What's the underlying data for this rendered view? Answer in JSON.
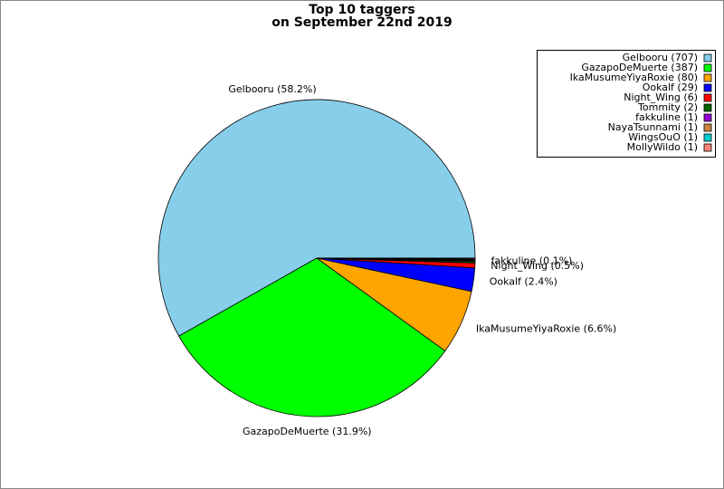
{
  "chart_data": {
    "type": "pie",
    "title": [
      "Top 10 taggers",
      "on September 22nd 2019"
    ],
    "categories": [
      "Gelbooru",
      "GazapoDeMuerte",
      "IkaMusumeYiyaRoxie",
      "Ookalf",
      "Night_Wing",
      "Tommity",
      "fakkuline",
      "NayaTsunnami",
      "WingsOuO",
      "MollyWildo"
    ],
    "values": [
      707,
      387,
      80,
      29,
      6,
      2,
      1,
      1,
      1,
      1
    ],
    "value_labels": [
      "Gelbooru (58.2%)",
      "GazapoDeMuerte (31.9%)",
      "IkaMusumeYiyaRoxie (6.6%)",
      "Ookalf (2.4%)",
      "Night_Wing (0.5%)",
      null,
      "fakkuline (0.1%)",
      null,
      null,
      null
    ],
    "legend_labels": [
      "Gelbooru (707)",
      "GazapoDeMuerte (387)",
      "IkaMusumeYiyaRoxie (80)",
      "Ookalf (29)",
      "Night_Wing (6)",
      "Tommity (2)",
      "fakkuline (1)",
      "NayaTsunnami (1)",
      "WingsOuO (1)",
      "MollyWildo (1)"
    ],
    "colors": [
      "#87ceeb",
      "#00ff00",
      "#ffa500",
      "#0000ff",
      "#ff0000",
      "#006400",
      "#9400d3",
      "#cd853f",
      "#00ced1",
      "#fa8072"
    ],
    "legend_position": "upper right"
  }
}
